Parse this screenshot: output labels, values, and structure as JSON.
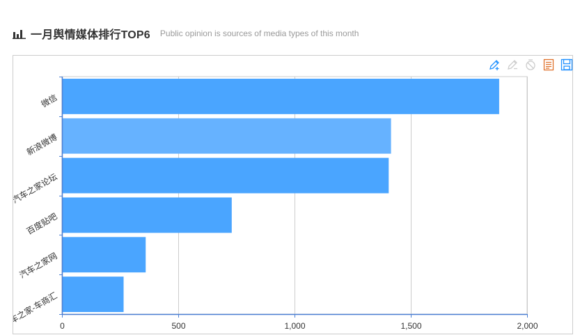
{
  "header": {
    "icon": "bar-chart-icon",
    "title": "一月舆情媒体排行TOP6",
    "subtitle": "Public opinion is sources of media types of this month"
  },
  "toolbox": [
    {
      "name": "edit-icon",
      "color": "#1e90ff"
    },
    {
      "name": "edit-disabled-icon",
      "color": "#cccccc"
    },
    {
      "name": "clear-icon",
      "color": "#cccccc"
    },
    {
      "name": "data-view-icon",
      "color": "#e0712b"
    },
    {
      "name": "save-icon",
      "color": "#1e90ff"
    }
  ],
  "chart_data": {
    "type": "bar",
    "orientation": "horizontal",
    "categories": [
      "微信",
      "新浪微博",
      "汽车之家论坛",
      "百度贴吧",
      "汽车之家网",
      "汽车之家-车商汇"
    ],
    "values": [
      1880,
      1415,
      1405,
      730,
      360,
      265
    ],
    "xlim": [
      0,
      2000
    ],
    "xticks": [
      "0",
      "500",
      "1,000",
      "1,500",
      "2,000"
    ],
    "xtick_values": [
      0,
      500,
      1000,
      1500,
      2000
    ],
    "grid": "vertical",
    "colors": {
      "bar": "#4aa5ff",
      "bar_highlight": "#66b2ff",
      "axis": "#4a7fd4",
      "grid": "#cccccc"
    },
    "highlighted_index": 1
  }
}
